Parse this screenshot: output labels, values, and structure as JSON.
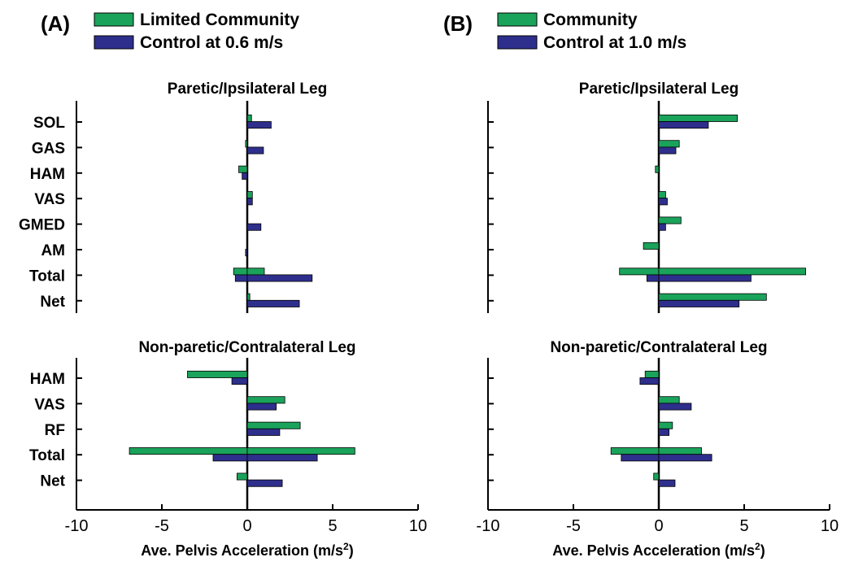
{
  "colors": {
    "green": "#1aa35a",
    "blue": "#2e2f8c",
    "axis": "#000000"
  },
  "chart_data": [
    {
      "type": "bar",
      "orientation": "horizontal",
      "panel_label": "(A)",
      "legend": [
        "Limited Community",
        "Control at 0.6 m/s"
      ],
      "xlim": [
        -10,
        10
      ],
      "xticks": [
        "-10",
        "-5",
        "0",
        "5",
        "10"
      ],
      "xlabel_main": "Ave. Pelvis Acceleration (m/s",
      "xlabel_sup": "2",
      "xlabel_end": ")",
      "groups": [
        {
          "title": "Paretic/Ipsilateral Leg",
          "categories": [
            "SOL",
            "GAS",
            "HAM",
            "VAS",
            "GMED",
            "AM",
            "Total",
            "Net"
          ],
          "bars": [
            [
              [
                0,
                0.25
              ],
              [
                0,
                1.4
              ]
            ],
            [
              [
                -0.1,
                0
              ],
              [
                0,
                0.95
              ]
            ],
            [
              [
                -0.5,
                0
              ],
              [
                -0.3,
                0
              ]
            ],
            [
              [
                0,
                0.3
              ],
              [
                0,
                0.3
              ]
            ],
            [
              [
                0,
                0
              ],
              [
                0,
                0.8
              ]
            ],
            [
              [
                0,
                0
              ],
              [
                -0.1,
                0
              ]
            ],
            [
              [
                -0.8,
                1.0
              ],
              [
                -0.7,
                3.8
              ]
            ],
            [
              [
                0,
                0.15
              ],
              [
                0,
                3.05
              ]
            ]
          ]
        },
        {
          "title": "Non-paretic/Contralateral Leg",
          "categories": [
            "HAM",
            "VAS",
            "RF",
            "Total",
            "Net"
          ],
          "bars": [
            [
              [
                -3.5,
                0
              ],
              [
                -0.9,
                0
              ]
            ],
            [
              [
                0,
                2.2
              ],
              [
                0,
                1.7
              ]
            ],
            [
              [
                0,
                3.1
              ],
              [
                0,
                1.9
              ]
            ],
            [
              [
                -6.9,
                6.3
              ],
              [
                -2.0,
                4.1
              ]
            ],
            [
              [
                -0.6,
                0
              ],
              [
                0,
                2.05
              ]
            ]
          ]
        }
      ]
    },
    {
      "type": "bar",
      "orientation": "horizontal",
      "panel_label": "(B)",
      "legend": [
        "Community",
        "Control at 1.0 m/s"
      ],
      "xlim": [
        -10,
        10
      ],
      "xticks": [
        "-10",
        "-5",
        "0",
        "5",
        "10"
      ],
      "xlabel_main": "Ave. Pelvis Acceleration (m/s",
      "xlabel_sup": "2",
      "xlabel_end": ")",
      "groups": [
        {
          "title": "Paretic/Ipsilateral Leg",
          "categories": [
            "SOL",
            "GAS",
            "HAM",
            "VAS",
            "GMED",
            "AM",
            "Total",
            "Net"
          ],
          "bars": [
            [
              [
                0,
                4.6
              ],
              [
                0,
                2.9
              ]
            ],
            [
              [
                0,
                1.2
              ],
              [
                0,
                1.0
              ]
            ],
            [
              [
                -0.2,
                0
              ],
              [
                0,
                0
              ]
            ],
            [
              [
                0,
                0.4
              ],
              [
                0,
                0.5
              ]
            ],
            [
              [
                0,
                1.3
              ],
              [
                0,
                0.4
              ]
            ],
            [
              [
                -0.9,
                0
              ],
              [
                0,
                0
              ]
            ],
            [
              [
                -2.3,
                8.6
              ],
              [
                -0.7,
                5.4
              ]
            ],
            [
              [
                0,
                6.3
              ],
              [
                0,
                4.7
              ]
            ]
          ]
        },
        {
          "title": "Non-paretic/Contralateral Leg",
          "categories": [
            "HAM",
            "VAS",
            "RF",
            "Total",
            "Net"
          ],
          "bars": [
            [
              [
                -0.8,
                0
              ],
              [
                -1.1,
                0
              ]
            ],
            [
              [
                0,
                1.2
              ],
              [
                0,
                1.9
              ]
            ],
            [
              [
                0,
                0.8
              ],
              [
                0,
                0.6
              ]
            ],
            [
              [
                -2.8,
                2.5
              ],
              [
                -2.2,
                3.1
              ]
            ],
            [
              [
                -0.3,
                0
              ],
              [
                0,
                0.95
              ]
            ]
          ]
        }
      ]
    }
  ]
}
